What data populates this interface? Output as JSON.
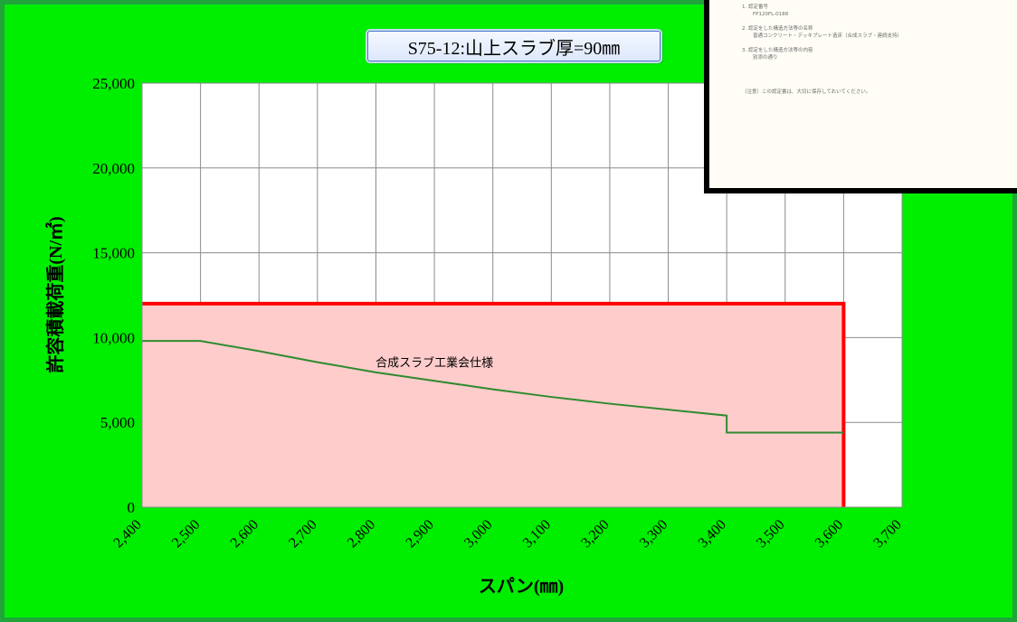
{
  "chart_data": {
    "type": "line",
    "title": "S75-12:山上スラブ厚=90㎜",
    "xlabel": "スパン(㎜)",
    "ylabel": "許容積載荷重(N/㎡)",
    "xlim": [
      2400,
      3700
    ],
    "ylim": [
      0,
      25000
    ],
    "x_ticks": [
      2400,
      2500,
      2600,
      2700,
      2800,
      2900,
      3000,
      3100,
      3200,
      3300,
      3400,
      3500,
      3600,
      3700
    ],
    "x_tick_labels": [
      "2,400",
      "2,500",
      "2,600",
      "2,700",
      "2,800",
      "2,900",
      "3,000",
      "3,100",
      "3,200",
      "3,300",
      "3,400",
      "3,500",
      "3,600",
      "3,700"
    ],
    "y_ticks": [
      0,
      5000,
      10000,
      15000,
      20000,
      25000
    ],
    "y_tick_labels": [
      "0",
      "5,000",
      "10,000",
      "15,000",
      "20,000",
      "25,000"
    ],
    "grid": true,
    "series": [
      {
        "name": "",
        "color": "#ff0000",
        "fill": "#ffcccc",
        "x": [
          2400,
          3600,
          3600
        ],
        "y": [
          12000,
          12000,
          0
        ]
      },
      {
        "name": "合成スラブ工業会仕様",
        "color": "#2e8b2e",
        "x": [
          2400,
          2500,
          2600,
          2700,
          2800,
          2900,
          3000,
          3100,
          3200,
          3300,
          3400,
          3400,
          3500,
          3600
        ],
        "y": [
          9800,
          9800,
          9200,
          8550,
          7950,
          7450,
          6950,
          6500,
          6100,
          5750,
          5400,
          4400,
          4400,
          4400
        ]
      }
    ],
    "annotations": [
      {
        "text": "合成スラブ工業会仕様",
        "x": 2900,
        "y": 8300
      }
    ]
  },
  "inset_document": {
    "items": [
      {
        "heading": "1. 認定番号",
        "body": "FP120FL-0188"
      },
      {
        "heading": "2. 認定をした構造方法等の名称",
        "body": "普通コンクリート・デッキプレート造床（合成スラブ・連続支持）"
      },
      {
        "heading": "3. 認定をした構造方法等の内容",
        "body": "別添の通り"
      }
    ],
    "note": "（注意）この認定書は、大切に保存しておいてください。"
  },
  "colors": {
    "background": "#00ee00",
    "frame_border": "#1fa53a",
    "plot_area": "#ffffff",
    "grid": "#8c8c8c"
  }
}
